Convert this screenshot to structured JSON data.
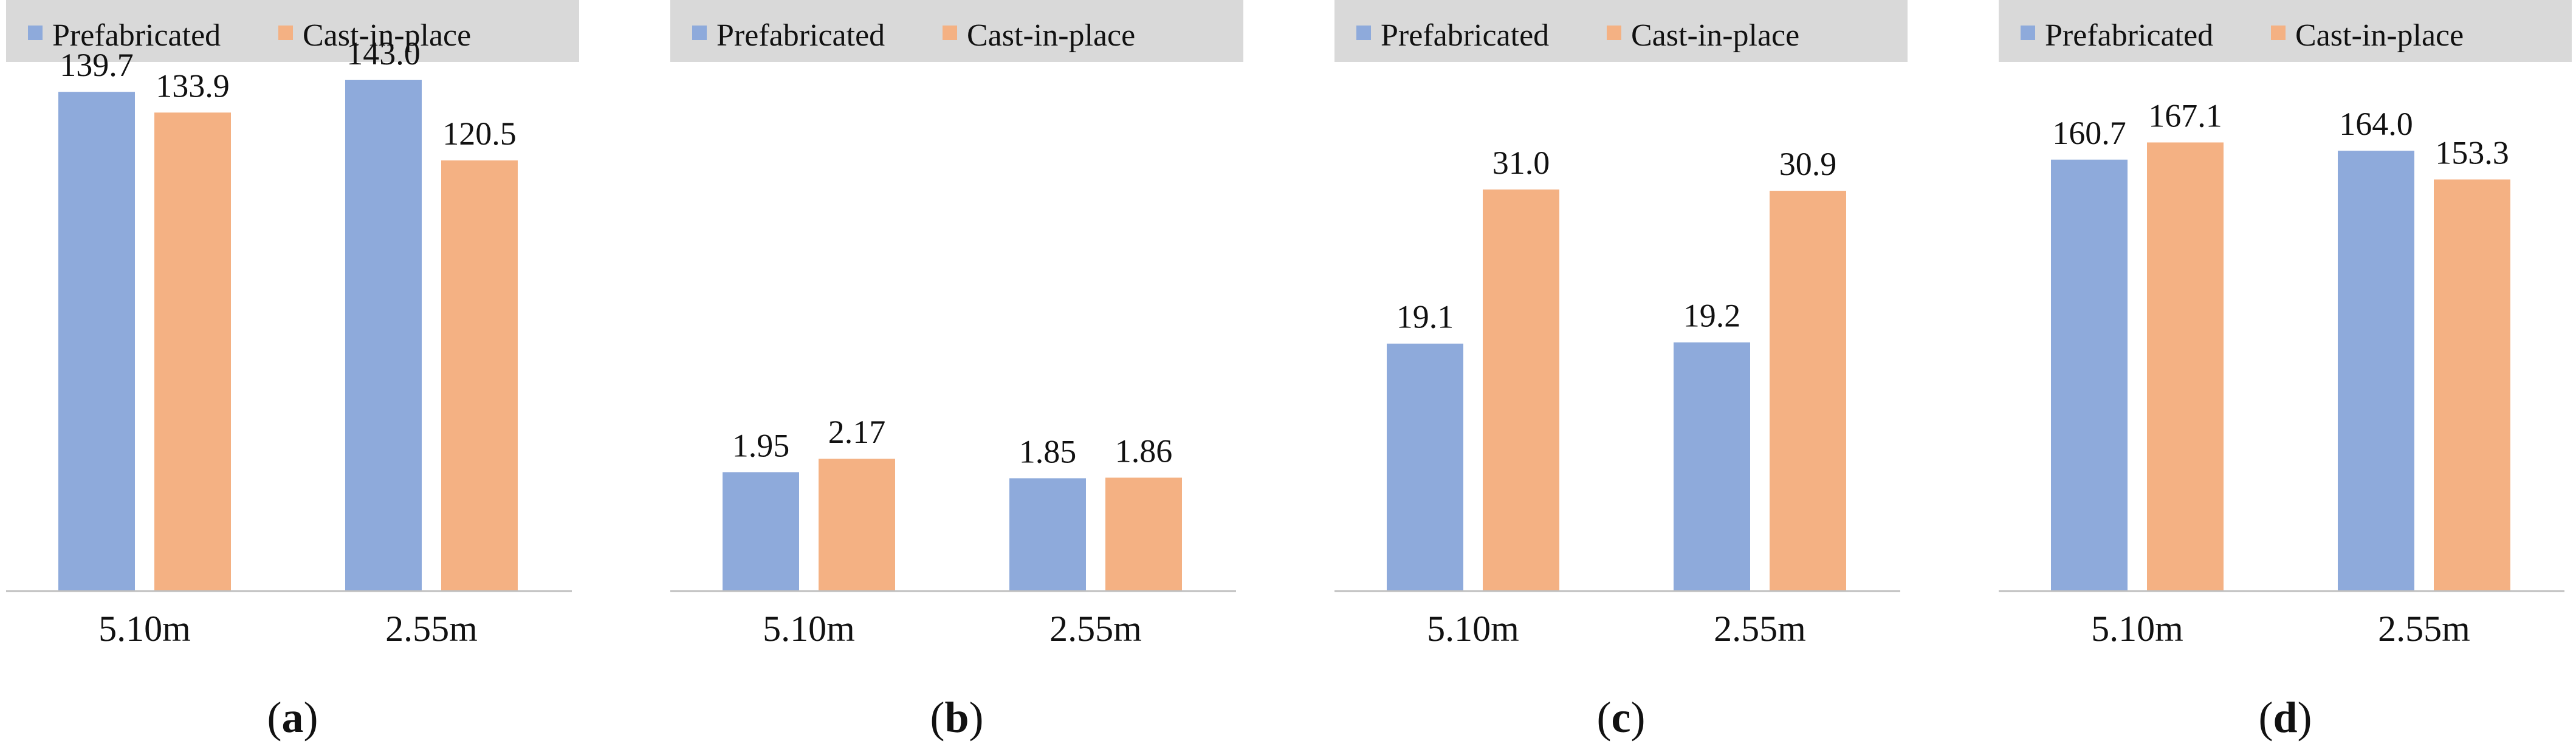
{
  "figure": {
    "series": [
      {
        "name": "Prefabricated",
        "color": "#8eaadb"
      },
      {
        "name": "Cast-in-place",
        "color": "#f4b183"
      }
    ],
    "legend_background": "#d9d9d9",
    "axis_color": "#bfbfbf"
  },
  "chart_data": [
    {
      "type": "bar",
      "panel": "(a)",
      "panel_letter": "a",
      "categories": [
        "5.10m",
        "2.55m"
      ],
      "series": [
        {
          "name": "Prefabricated",
          "values": [
            139.7,
            143.0
          ],
          "labels": [
            "139.7",
            "143.0"
          ]
        },
        {
          "name": "Cast-in-place",
          "values": [
            133.9,
            120.5
          ],
          "labels": [
            "133.9",
            "120.5"
          ]
        }
      ],
      "ylim": [
        0,
        145
      ],
      "legend": "top",
      "grid": false
    },
    {
      "type": "bar",
      "panel": "(b)",
      "panel_letter": "b",
      "categories": [
        "5.10m",
        "2.55m"
      ],
      "series": [
        {
          "name": "Prefabricated",
          "values": [
            1.95,
            1.85
          ],
          "labels": [
            "1.95",
            "1.85"
          ]
        },
        {
          "name": "Cast-in-place",
          "values": [
            2.17,
            1.86
          ],
          "labels": [
            "2.17",
            "1.86"
          ]
        }
      ],
      "ylim": [
        0,
        8.5
      ],
      "legend": "top",
      "grid": false
    },
    {
      "type": "bar",
      "panel": "(c)",
      "panel_letter": "c",
      "categories": [
        "5.10m",
        "2.55m"
      ],
      "series": [
        {
          "name": "Prefabricated",
          "values": [
            19.1,
            19.2
          ],
          "labels": [
            "19.1",
            "19.2"
          ]
        },
        {
          "name": "Cast-in-place",
          "values": [
            31.0,
            30.9
          ],
          "labels": [
            "31.0",
            "30.9"
          ]
        }
      ],
      "ylim": [
        0,
        40
      ],
      "legend": "top",
      "grid": false
    },
    {
      "type": "bar",
      "panel": "(d)",
      "panel_letter": "d",
      "categories": [
        "5.10m",
        "2.55m"
      ],
      "series": [
        {
          "name": "Prefabricated",
          "values": [
            160.7,
            164.0
          ],
          "labels": [
            "160.7",
            "164.0"
          ]
        },
        {
          "name": "Cast-in-place",
          "values": [
            167.1,
            153.3
          ],
          "labels": [
            "167.1",
            "153.3"
          ]
        }
      ],
      "ylim": [
        0,
        193
      ],
      "legend": "top",
      "grid": false
    }
  ]
}
